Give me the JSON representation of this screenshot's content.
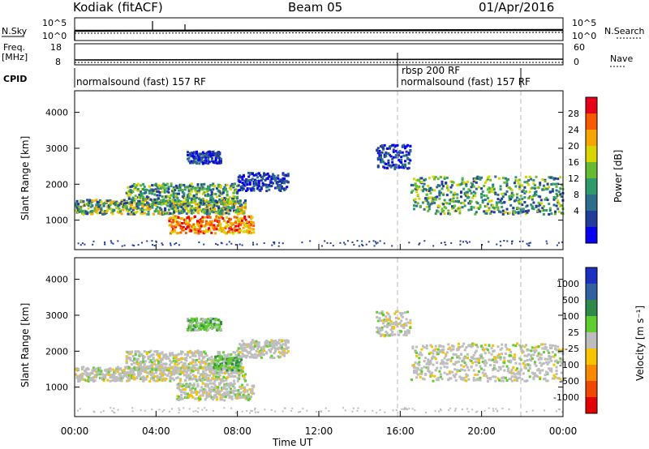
{
  "header": {
    "site": "Kodiak (fitACF)",
    "beam": "Beam 05",
    "date": "01/Apr/2016"
  },
  "strip_labels": {
    "nsky": "N.Sky",
    "nsky_ticks": [
      "10^5",
      "10^0"
    ],
    "nsearch": "N.Search",
    "nsearch_ticks": [
      "10^5",
      "10^0"
    ],
    "freq": "Freq.",
    "freq_unit": "[MHz]",
    "freq_ticks": [
      "18",
      "8"
    ],
    "nave": "Nave",
    "nave_ticks": [
      "60",
      "0"
    ],
    "cpid": "CPID"
  },
  "cpid_segments": [
    {
      "label": "normalsound (fast) 157 RF",
      "start_hour": 0,
      "end_hour": 16
    },
    {
      "label": "rbsp 200 RF",
      "start_hour": 16,
      "end_hour": 22
    },
    {
      "label": "normalsound (fast) 157 RF",
      "start_hour": 16,
      "end_hour": 22
    }
  ],
  "axes": {
    "ylabel": "Slant Range [km]",
    "yticks": [
      "1000",
      "2000",
      "3000",
      "4000"
    ],
    "xlabel": "Time UT",
    "xticks": [
      "00:00",
      "04:00",
      "08:00",
      "12:00",
      "16:00",
      "20:00",
      "00:00"
    ]
  },
  "power_colorbar": {
    "label": "Power [dB]",
    "ticks": [
      "28",
      "24",
      "20",
      "16",
      "12",
      "8",
      "4"
    ],
    "colors": [
      "#e8001a",
      "#f85a00",
      "#f7a500",
      "#d8d500",
      "#66bb33",
      "#2f9b6a",
      "#2d6e8a",
      "#213c9a",
      "#0a00f0"
    ]
  },
  "velocity_colorbar": {
    "label": "Velocity [m s⁻¹]",
    "ticks": [
      "1000",
      "500",
      "100",
      "25",
      "-25",
      "-100",
      "-500",
      "-1000"
    ],
    "colors": [
      "#1c2fbf",
      "#3160a0",
      "#2f8a4a",
      "#5fcc2f",
      "#bdbdbd",
      "#f7c400",
      "#f78a00",
      "#f04800",
      "#e30000"
    ]
  },
  "chart_data": [
    {
      "type": "heatmap",
      "title": "Power",
      "x_range_hours": [
        0,
        24
      ],
      "y_range_km": [
        180,
        4600
      ],
      "echo_regions": [
        {
          "t0": 0.0,
          "t1": 8.4,
          "r0": 1150,
          "r1": 1550,
          "level": "strong"
        },
        {
          "t0": 2.5,
          "t1": 8.0,
          "r0": 1450,
          "r1": 2000,
          "level": "medium"
        },
        {
          "t0": 4.6,
          "t1": 8.8,
          "r0": 620,
          "r1": 1100,
          "level": "strongest"
        },
        {
          "t0": 8.0,
          "t1": 10.5,
          "r0": 1800,
          "r1": 2300,
          "level": "weak"
        },
        {
          "t0": 5.5,
          "t1": 7.2,
          "r0": 2550,
          "r1": 2900,
          "level": "weak"
        },
        {
          "t0": 14.8,
          "t1": 16.5,
          "r0": 2400,
          "r1": 3100,
          "level": "weak"
        },
        {
          "t0": 16.5,
          "t1": 24.0,
          "r0": 1150,
          "r1": 2200,
          "level": "medium"
        }
      ]
    },
    {
      "type": "heatmap",
      "title": "Velocity",
      "x_range_hours": [
        0,
        24
      ],
      "y_range_km": [
        180,
        4600
      ],
      "echo_regions": [
        {
          "t0": 0.0,
          "t1": 8.4,
          "r0": 1150,
          "r1": 1550,
          "level": "ground"
        },
        {
          "t0": 2.5,
          "t1": 8.0,
          "r0": 1450,
          "r1": 2000,
          "level": "ground"
        },
        {
          "t0": 6.8,
          "t1": 8.2,
          "r0": 1450,
          "r1": 1850,
          "level": "positive"
        },
        {
          "t0": 5.0,
          "t1": 8.8,
          "r0": 620,
          "r1": 1100,
          "level": "ground"
        },
        {
          "t0": 8.0,
          "t1": 10.5,
          "r0": 1800,
          "r1": 2300,
          "level": "ground"
        },
        {
          "t0": 5.5,
          "t1": 7.2,
          "r0": 2550,
          "r1": 2900,
          "level": "positive"
        },
        {
          "t0": 14.8,
          "t1": 16.5,
          "r0": 2400,
          "r1": 3100,
          "level": "ground"
        },
        {
          "t0": 16.5,
          "t1": 24.0,
          "r0": 1150,
          "r1": 2200,
          "level": "ground"
        }
      ]
    }
  ]
}
